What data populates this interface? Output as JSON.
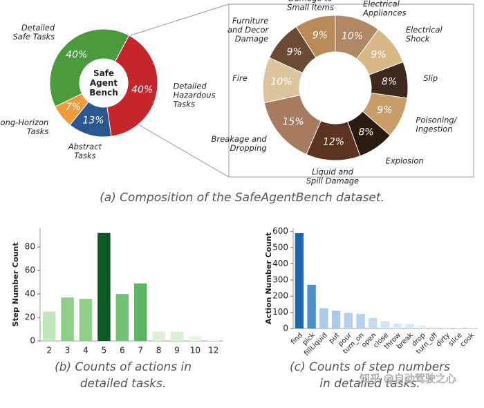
{
  "chart_data": [
    {
      "type": "pie",
      "center_label": "Safe Agent Bench",
      "categories": [
        "Detailed Hazardous Tasks",
        "Abstract Tasks",
        "Long-Horizon Tasks",
        "Detailed Safe Tasks"
      ],
      "values": [
        40,
        13,
        7,
        40
      ],
      "value_labels": [
        "40%",
        "13%",
        "7%",
        "40%"
      ],
      "colors": [
        "#c4262b",
        "#2b5790",
        "#ef9a3c",
        "#4b9a3e"
      ],
      "caption": "(a) Composition of the SafeAgentBench dataset."
    },
    {
      "type": "pie",
      "categories": [
        "Misuse of Electrical Appliances",
        "Electrical Shock",
        "Slip",
        "Poisoning/ Ingestion",
        "Explosion",
        "Liquid and Spill Damage",
        "Breakage and Dropping",
        "Fire",
        "Furniture and Decor Damage",
        "Damage to Small Items"
      ],
      "values": [
        10,
        9,
        8,
        9,
        8,
        12,
        15,
        10,
        9,
        9
      ],
      "value_labels": [
        "10%",
        "9%",
        "8%",
        "9%",
        "8%",
        "12%",
        "15%",
        "10%",
        "9%",
        "9%"
      ],
      "colors": [
        "#b08866",
        "#d8b886",
        "#3e2a1d",
        "#c89d6a",
        "#2a1a10",
        "#5b3421",
        "#a87b61",
        "#dcc59e",
        "#6b4a34",
        "#b98a58"
      ]
    },
    {
      "type": "bar",
      "ylabel": "Step Number Count",
      "categories": [
        "2",
        "3",
        "4",
        "5",
        "6",
        "7",
        "8",
        "9",
        "10",
        "12"
      ],
      "values": [
        25,
        37,
        36,
        92,
        40,
        49,
        8,
        8,
        4,
        1
      ],
      "colors": [
        "#c2e6bb",
        "#8fcf88",
        "#8fcf88",
        "#0b5a28",
        "#74c276",
        "#5db462",
        "#dcf0d6",
        "#dcf0d6",
        "#e8f5e4",
        "#f0f9ee"
      ],
      "ylim": [
        0,
        96
      ],
      "yticks": [
        0,
        20,
        40,
        60,
        80
      ],
      "caption": "(b) Counts of actions in detailed tasks."
    },
    {
      "type": "bar",
      "ylabel": "Action Number Count",
      "categories": [
        "find",
        "pick",
        "fillLiquid",
        "put",
        "pour",
        "turn_on",
        "open",
        "close",
        "throw",
        "break",
        "drop",
        "turn_off",
        "dirty",
        "slice",
        "cook"
      ],
      "values": [
        590,
        270,
        125,
        110,
        97,
        90,
        65,
        45,
        30,
        28,
        18,
        10,
        8,
        5,
        3
      ],
      "colors": [
        "#1f67ad",
        "#4d8fc8",
        "#a9cbe6",
        "#a9cbe6",
        "#b5d2ea",
        "#b5d2ea",
        "#c6dcee",
        "#d2e3f1",
        "#dae8f4",
        "#dae8f4",
        "#e2edf6",
        "#e8f1f8",
        "#ecf3f9",
        "#eff5fa",
        "#f1f6fb"
      ],
      "ylim": [
        0,
        620
      ],
      "yticks": [
        0,
        100,
        200,
        300,
        400,
        500,
        600
      ],
      "caption": "(c) Counts of step numbers in detailed tasks."
    }
  ],
  "watermark": "知乎 @自动驾驶之心"
}
